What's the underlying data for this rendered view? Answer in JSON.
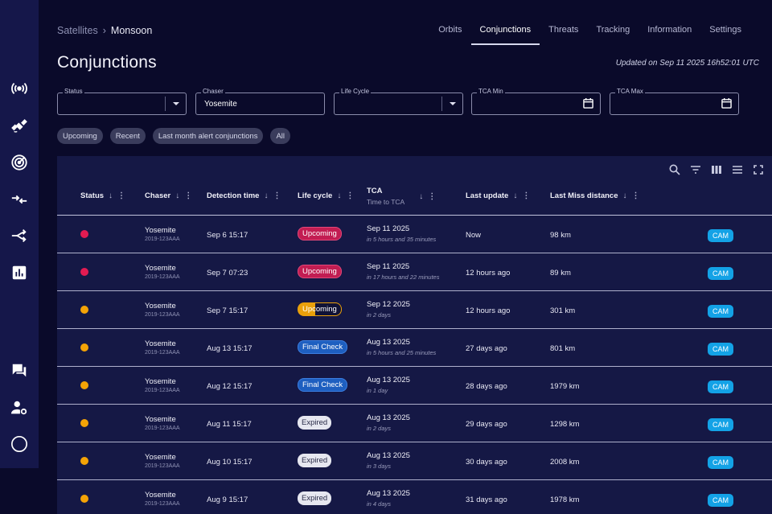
{
  "breadcrumb": {
    "root": "Satellites",
    "separator": "›",
    "current": "Monsoon"
  },
  "nav": {
    "tabs": [
      {
        "label": "Orbits"
      },
      {
        "label": "Conjunctions"
      },
      {
        "label": "Threats"
      },
      {
        "label": "Tracking"
      },
      {
        "label": "Information"
      },
      {
        "label": "Settings"
      }
    ],
    "active": "Conjunctions"
  },
  "page": {
    "title": "Conjunctions",
    "updated": "Updated on Sep 11 2025 16h52:01 UTC"
  },
  "filters": {
    "status": {
      "label": "Status",
      "value": ""
    },
    "chaser": {
      "label": "Chaser",
      "value": "Yosemite"
    },
    "life_cycle": {
      "label": "Life Cycle",
      "value": ""
    },
    "tca_min": {
      "label": "TCA Min",
      "value": ""
    },
    "tca_max": {
      "label": "TCA Max",
      "value": ""
    }
  },
  "chips": [
    "Upcoming",
    "Recent",
    "Last month alert conjunctions",
    "All"
  ],
  "table": {
    "columns": {
      "status": "Status",
      "chaser": "Chaser",
      "detection": "Detection time",
      "lifecycle": "Life cycle",
      "tca": "TCA",
      "tca_sub": "Time to TCA",
      "last_update": "Last update",
      "miss": "Last Miss distance"
    },
    "sort_glyph": "↓",
    "kebab_glyph": "⋮",
    "rows": [
      {
        "status": "red",
        "chaser": "Yosemite",
        "chaser_id": "2019-123AAA",
        "detection": "Sep 6 15:17",
        "lifecycle": "Upcoming",
        "lifecycle_style": "upcoming",
        "tca": "Sep 11 2025",
        "tca_rel": "in 5 hours and 35 minutes",
        "last_update": "Now",
        "miss": "98 km",
        "action": "CAM"
      },
      {
        "status": "red",
        "chaser": "Yosemite",
        "chaser_id": "2019-123AAA",
        "detection": "Sep 7 07:23",
        "lifecycle": "Upcoming",
        "lifecycle_style": "upcoming",
        "tca": "Sep 11 2025",
        "tca_rel": "in 17 hours and 22 minutes",
        "last_update": "12 hours ago",
        "miss": "89 km",
        "action": "CAM"
      },
      {
        "status": "orange",
        "chaser": "Yosemite",
        "chaser_id": "2019-123AAA",
        "detection": "Sep 7 15:17",
        "lifecycle": "Upcoming",
        "lifecycle_style": "upcoming-orange",
        "tca": "Sep 12 2025",
        "tca_rel": "in 2 days",
        "last_update": "12 hours ago",
        "miss": "301 km",
        "action": "CAM"
      },
      {
        "status": "orange",
        "chaser": "Yosemite",
        "chaser_id": "2019-123AAA",
        "detection": "Aug 13 15:17",
        "lifecycle": "Final Check",
        "lifecycle_style": "final",
        "tca": "Aug 13 2025",
        "tca_rel": "in 5 hours and 25 minutes",
        "last_update": "27 days ago",
        "miss": "801 km",
        "action": "CAM"
      },
      {
        "status": "orange",
        "chaser": "Yosemite",
        "chaser_id": "2019-123AAA",
        "detection": "Aug 12 15:17",
        "lifecycle": "Final Check",
        "lifecycle_style": "final",
        "tca": "Aug 13 2025",
        "tca_rel": "in 1 day",
        "last_update": "28 days ago",
        "miss": "1979 km",
        "action": "CAM"
      },
      {
        "status": "orange",
        "chaser": "Yosemite",
        "chaser_id": "2019-123AAA",
        "detection": "Aug 11 15:17",
        "lifecycle": "Expired",
        "lifecycle_style": "expired",
        "tca": "Aug 13 2025",
        "tca_rel": "in 2 days",
        "last_update": "29 days ago",
        "miss": "1298 km",
        "action": "CAM"
      },
      {
        "status": "orange",
        "chaser": "Yosemite",
        "chaser_id": "2019-123AAA",
        "detection": "Aug 10 15:17",
        "lifecycle": "Expired",
        "lifecycle_style": "expired",
        "tca": "Aug 13 2025",
        "tca_rel": "in 3 days",
        "last_update": "30 days ago",
        "miss": "2008 km",
        "action": "CAM"
      },
      {
        "status": "orange",
        "chaser": "Yosemite",
        "chaser_id": "2019-123AAA",
        "detection": "Aug 9 15:17",
        "lifecycle": "Expired",
        "lifecycle_style": "expired",
        "tca": "Aug 13 2025",
        "tca_rel": "in 4 days",
        "last_update": "31 days ago",
        "miss": "1978 km",
        "action": "CAM"
      }
    ]
  },
  "colors": {
    "status_red": "#e21b52",
    "status_orange": "#f4a306",
    "cam": "#13a2e6",
    "accent_final": "#1e5fc0",
    "sidebar": "#15174a",
    "panel": "#151845"
  },
  "icons": {
    "sidebar": [
      "broadcast-icon",
      "satellite-icon",
      "radar-icon",
      "converge-arrows-icon",
      "share-arrows-icon",
      "bar-chart-icon",
      "chat-icon",
      "user-settings-icon",
      "circle-icon"
    ],
    "toolbar": [
      "search-icon",
      "filter-icon",
      "columns-icon",
      "density-icon",
      "fullscreen-icon"
    ]
  }
}
